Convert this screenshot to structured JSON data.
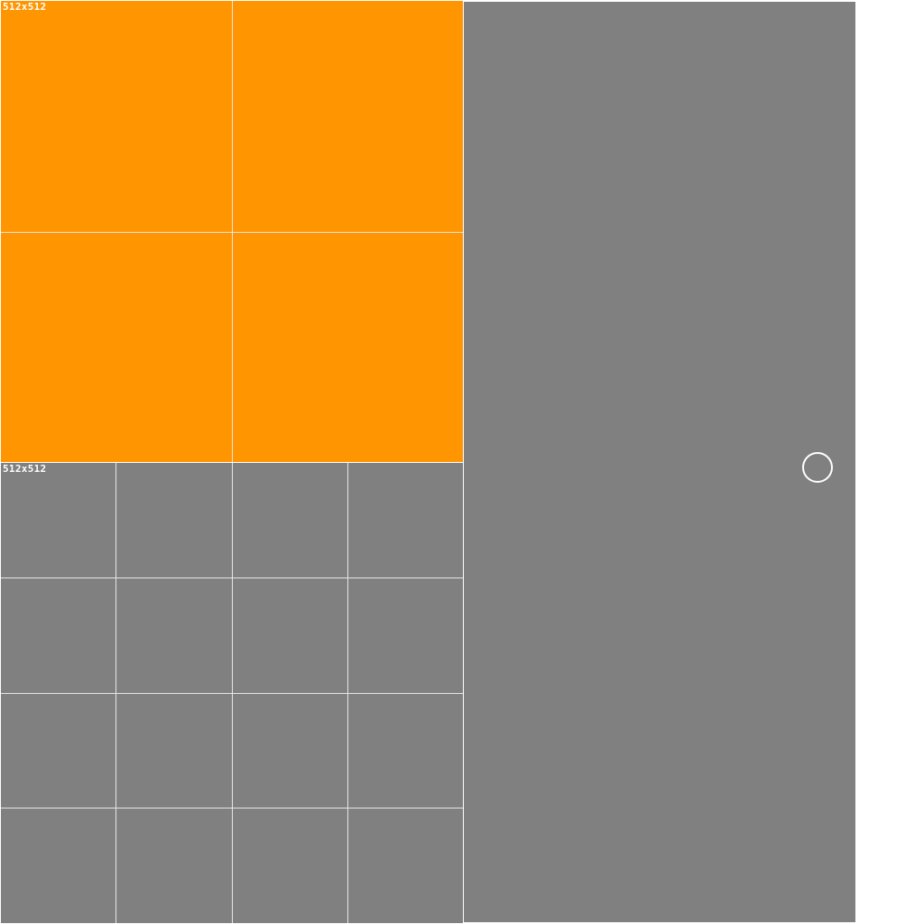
{
  "tiles": [
    {
      "label": "512x512",
      "grid": "2x2",
      "color": "#ff9500"
    },
    {
      "label": "512x512",
      "grid": "4x4",
      "color": "#808080"
    }
  ],
  "side_panel": {
    "color": "#808080"
  },
  "cursor": {
    "icon": "circle-cursor-icon"
  }
}
